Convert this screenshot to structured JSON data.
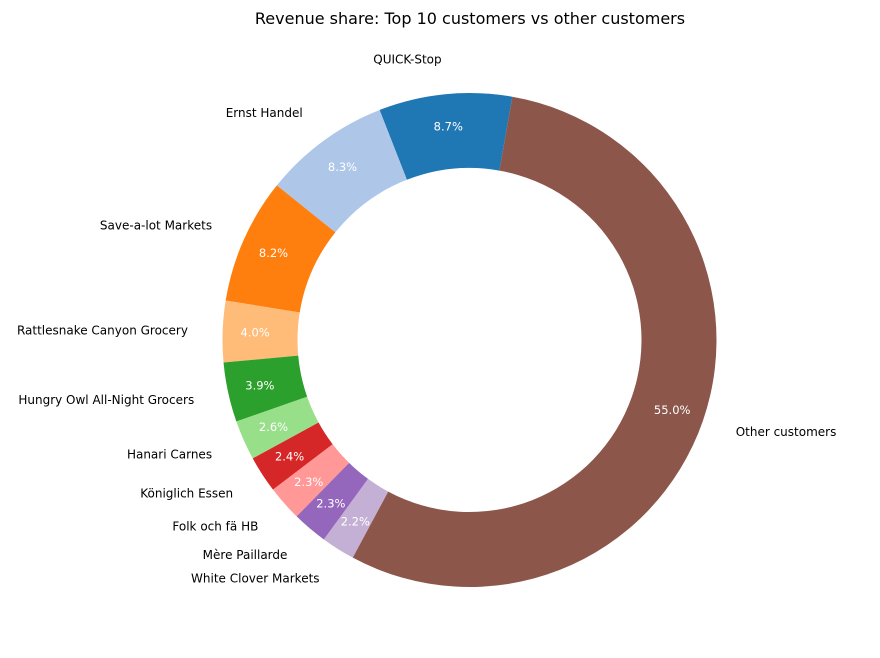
{
  "chart_data": {
    "type": "pie",
    "donut": true,
    "title": "Revenue share: Top 10 customers vs other customers",
    "start_angle_deg": 80,
    "direction": "counterclockwise",
    "label_format": "percent_one_decimal",
    "slices": [
      {
        "label": "QUICK-Stop",
        "value": 8.7,
        "pct_text": "8.7%",
        "color": "#1f77b4",
        "pct_color": "#ffffff"
      },
      {
        "label": "Ernst Handel",
        "value": 8.3,
        "pct_text": "8.3%",
        "color": "#aec7e8",
        "pct_color": "#ffffff"
      },
      {
        "label": "Save-a-lot Markets",
        "value": 8.2,
        "pct_text": "8.2%",
        "color": "#ff7f0e",
        "pct_color": "#ffffff"
      },
      {
        "label": "Rattlesnake Canyon Grocery",
        "value": 4.0,
        "pct_text": "4.0%",
        "color": "#ffbb78",
        "pct_color": "#ffffff"
      },
      {
        "label": "Hungry Owl All-Night Grocers",
        "value": 3.9,
        "pct_text": "3.9%",
        "color": "#2ca02c",
        "pct_color": "#ffffff"
      },
      {
        "label": "Hanari Carnes",
        "value": 2.6,
        "pct_text": "2.6%",
        "color": "#98df8a",
        "pct_color": "#ffffff"
      },
      {
        "label": "Königlich Essen",
        "value": 2.4,
        "pct_text": "2.4%",
        "color": "#d62728",
        "pct_color": "#ffffff"
      },
      {
        "label": "Folk och fä HB",
        "value": 2.3,
        "pct_text": "2.3%",
        "color": "#ff9896",
        "pct_color": "#ffffff"
      },
      {
        "label": "Mère Paillarde",
        "value": 2.3,
        "pct_text": "2.3%",
        "color": "#9467bd",
        "pct_color": "#ffffff"
      },
      {
        "label": "White Clover Markets",
        "value": 2.2,
        "pct_text": "2.2%",
        "color": "#c5b0d5",
        "pct_color": "#ffffff"
      },
      {
        "label": "Other customers",
        "value": 55.0,
        "pct_text": "55.0%",
        "color": "#8c564b",
        "pct_color": "#ffffff"
      }
    ]
  }
}
